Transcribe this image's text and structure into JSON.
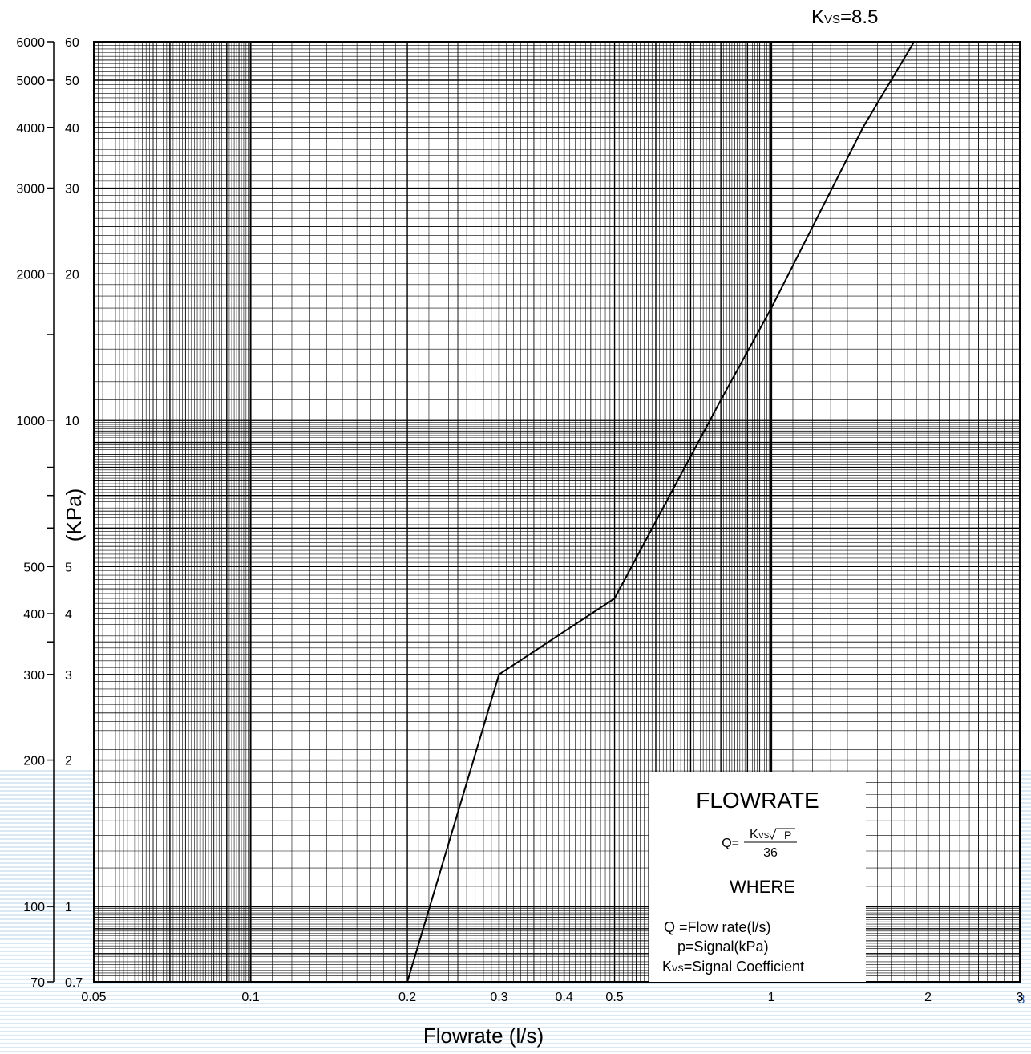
{
  "chart_data": {
    "type": "line",
    "x_scale": "log",
    "y_scale": "log",
    "xlabel": "Flowrate (l/s)",
    "ylabel": "(KPa)",
    "xlim": [
      0.05,
      3
    ],
    "ylim_kpa": [
      70,
      6000
    ],
    "x_ticks": [
      {
        "value": 0.05,
        "label": "0.05"
      },
      {
        "value": 0.1,
        "label": "0.1"
      },
      {
        "value": 0.2,
        "label": "0.2"
      },
      {
        "value": 0.3,
        "label": "0.3"
      },
      {
        "value": 0.4,
        "label": "0.4"
      },
      {
        "value": 0.5,
        "label": "0.5"
      },
      {
        "value": 1,
        "label": "1"
      },
      {
        "value": 2,
        "label": "2"
      },
      {
        "value": 3,
        "label": "3"
      }
    ],
    "y_ticks_kpa": [
      {
        "value": 6000,
        "label": "6000"
      },
      {
        "value": 5000,
        "label": "5000"
      },
      {
        "value": 4000,
        "label": "4000"
      },
      {
        "value": 3000,
        "label": "3000"
      },
      {
        "value": 2000,
        "label": "2000"
      },
      {
        "value": 1500,
        "label": ""
      },
      {
        "value": 1000,
        "label": "1000"
      },
      {
        "value": 800,
        "label": ""
      },
      {
        "value": 700,
        "label": ""
      },
      {
        "value": 600,
        "label": ""
      },
      {
        "value": 500,
        "label": "500"
      },
      {
        "value": 400,
        "label": "400"
      },
      {
        "value": 350,
        "label": ""
      },
      {
        "value": 300,
        "label": "300"
      },
      {
        "value": 200,
        "label": "200"
      },
      {
        "value": 100,
        "label": "100"
      },
      {
        "value": 70,
        "label": "70"
      }
    ],
    "y_ticks_secondary": [
      {
        "value": 6000,
        "label": "60"
      },
      {
        "value": 5000,
        "label": "50"
      },
      {
        "value": 4000,
        "label": "40"
      },
      {
        "value": 3000,
        "label": "30"
      },
      {
        "value": 2000,
        "label": "20"
      },
      {
        "value": 1000,
        "label": "10"
      },
      {
        "value": 500,
        "label": "5"
      },
      {
        "value": 400,
        "label": "4"
      },
      {
        "value": 300,
        "label": "3"
      },
      {
        "value": 200,
        "label": "2"
      },
      {
        "value": 100,
        "label": "1"
      },
      {
        "value": 70,
        "label": "0.7"
      }
    ],
    "grid": true,
    "series": [
      {
        "name": "Kvs=8.5",
        "x": [
          0.2,
          0.3,
          0.5,
          0.8,
          1.0,
          1.5,
          1.88
        ],
        "y": [
          70,
          300,
          430,
          1100,
          1700,
          4000,
          6000
        ]
      }
    ],
    "series_label": {
      "prefix": "K",
      "sub": "VS",
      "suffix": "=8.5"
    },
    "legend": {
      "position": "bottom-right",
      "title": "FLOWRATE",
      "formula_lhs": "Q=",
      "formula_num_k": "K",
      "formula_num_sub": "VS",
      "formula_num_sqrt": "P",
      "formula_den": "36",
      "where": "WHERE",
      "lines": [
        "Q  =Flow rate(l/s)",
        "p=Signal(kPa)"
      ],
      "kvs_line_k": "K",
      "kvs_line_sub": "VS",
      "kvs_line_rest": "=Signal Coefficient"
    }
  },
  "page_number": "3"
}
